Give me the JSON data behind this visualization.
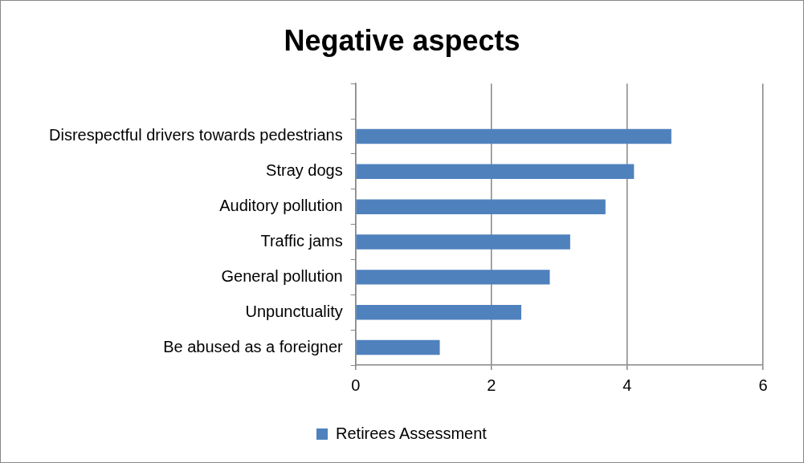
{
  "chart_data": {
    "type": "bar",
    "orientation": "horizontal",
    "title": "Negative aspects",
    "categories": [
      null,
      "Disrespectful drivers towards pedestrians",
      "Stray dogs",
      "Auditory pollution",
      "Traffic jams",
      "General pollution",
      "Unpunctuality",
      "Be abused as a foreigner"
    ],
    "series": [
      {
        "name": "Retirees Assessment",
        "color": "#4f81bd",
        "values": [
          null,
          4.65,
          4.1,
          3.68,
          3.16,
          2.86,
          2.44,
          1.24
        ]
      }
    ],
    "xlim": [
      0,
      6
    ],
    "xticks": [
      0,
      2,
      4,
      6
    ],
    "grid": "x",
    "legend": "bottom"
  }
}
